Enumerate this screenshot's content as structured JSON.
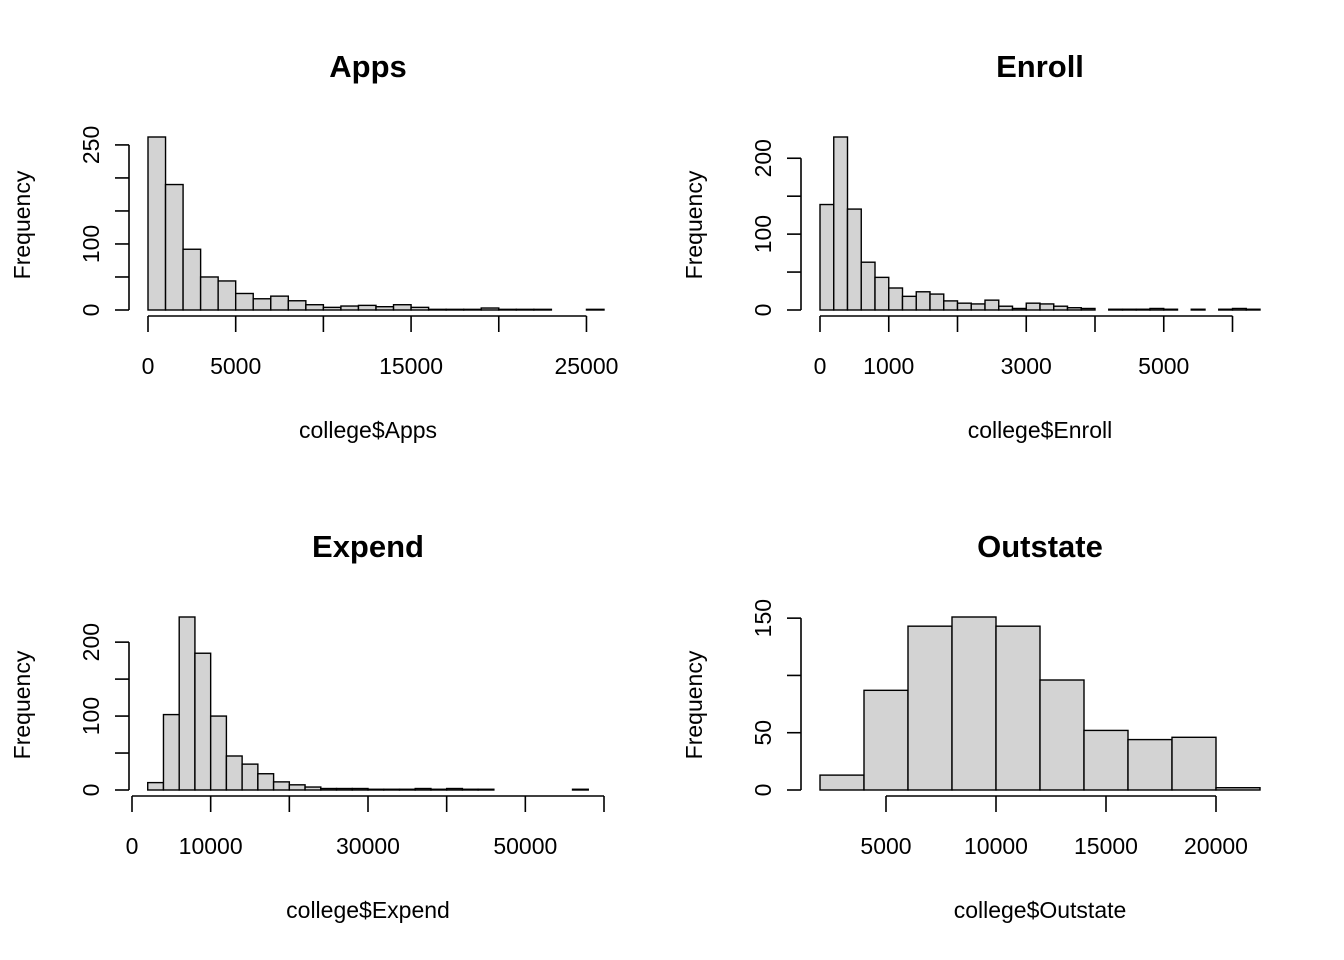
{
  "chart_data": [
    {
      "type": "bar",
      "title": "Apps",
      "xlabel": "college$Apps",
      "ylabel": "Frequency",
      "bins": [
        0,
        1000,
        2000,
        3000,
        4000,
        5000,
        6000,
        7000,
        8000,
        9000,
        10000,
        11000,
        12000,
        13000,
        14000,
        15000,
        16000,
        17000,
        18000,
        19000,
        20000,
        21000,
        22000,
        23000,
        24000,
        25000,
        26000
      ],
      "counts": [
        262,
        190,
        92,
        50,
        44,
        25,
        17,
        21,
        14,
        8,
        4,
        6,
        7,
        5,
        8,
        4,
        1,
        1,
        1,
        3,
        1,
        1,
        1,
        0,
        0,
        1
      ],
      "xticks": [
        0,
        5000,
        10000,
        15000,
        20000,
        25000
      ],
      "xticklabels": [
        "0",
        "5000",
        "",
        "15000",
        "",
        "25000"
      ],
      "yticks": [
        0,
        50,
        100,
        150,
        200,
        250
      ],
      "yticklabels": [
        "0",
        "",
        "100",
        "",
        "",
        "250"
      ],
      "xlim": [
        0,
        26000
      ],
      "ylim": [
        0,
        262
      ]
    },
    {
      "type": "bar",
      "title": "Enroll",
      "xlabel": "college$Enroll",
      "ylabel": "Frequency",
      "bins": [
        0,
        200,
        400,
        600,
        800,
        1000,
        1200,
        1400,
        1600,
        1800,
        2000,
        2200,
        2400,
        2600,
        2800,
        3000,
        3200,
        3400,
        3600,
        3800,
        4000,
        4200,
        4400,
        4600,
        4800,
        5000,
        5200,
        5400,
        5600,
        5800,
        6000,
        6200,
        6400
      ],
      "counts": [
        139,
        228,
        133,
        63,
        43,
        29,
        18,
        24,
        21,
        12,
        9,
        8,
        13,
        5,
        2,
        9,
        8,
        5,
        3,
        2,
        0,
        1,
        1,
        1,
        2,
        1,
        0,
        1,
        0,
        1,
        2,
        1
      ],
      "xticks": [
        0,
        1000,
        2000,
        3000,
        4000,
        5000,
        6000
      ],
      "xticklabels": [
        "0",
        "1000",
        "",
        "3000",
        "",
        "5000",
        ""
      ],
      "yticks": [
        0,
        50,
        100,
        150,
        200
      ],
      "yticklabels": [
        "0",
        "",
        "100",
        "",
        "200"
      ],
      "xlim": [
        0,
        6400
      ],
      "ylim": [
        0,
        228
      ]
    },
    {
      "type": "bar",
      "title": "Expend",
      "xlabel": "college$Expend",
      "ylabel": "Frequency",
      "bins": [
        0,
        2000,
        4000,
        6000,
        8000,
        10000,
        12000,
        14000,
        16000,
        18000,
        20000,
        22000,
        24000,
        26000,
        28000,
        30000,
        32000,
        34000,
        36000,
        38000,
        40000,
        42000,
        44000,
        46000,
        48000,
        50000,
        52000,
        54000,
        56000,
        58000,
        60000
      ],
      "counts": [
        0,
        10,
        102,
        234,
        185,
        100,
        46,
        35,
        22,
        11,
        7,
        4,
        2,
        2,
        2,
        1,
        1,
        1,
        2,
        1,
        2,
        1,
        1,
        0,
        0,
        0,
        0,
        0,
        1,
        0
      ],
      "xticks": [
        0,
        10000,
        20000,
        30000,
        40000,
        50000,
        60000
      ],
      "xticklabels": [
        "0",
        "10000",
        "",
        "30000",
        "",
        "50000",
        ""
      ],
      "yticks": [
        0,
        50,
        100,
        150,
        200
      ],
      "yticklabels": [
        "0",
        "",
        "100",
        "",
        "200"
      ],
      "xlim": [
        0,
        60000
      ],
      "ylim": [
        0,
        234
      ]
    },
    {
      "type": "bar",
      "title": "Outstate",
      "xlabel": "college$Outstate",
      "ylabel": "Frequency",
      "bins": [
        2000,
        4000,
        6000,
        8000,
        10000,
        12000,
        14000,
        16000,
        18000,
        20000,
        22000
      ],
      "counts": [
        13,
        87,
        143,
        151,
        143,
        96,
        52,
        44,
        46,
        2
      ],
      "xticks": [
        5000,
        10000,
        15000,
        20000
      ],
      "xticklabels": [
        "5000",
        "10000",
        "15000",
        "20000"
      ],
      "yticks": [
        0,
        50,
        100,
        150
      ],
      "yticklabels": [
        "0",
        "50",
        "",
        "150"
      ],
      "xlim": [
        2000,
        22000
      ],
      "ylim": [
        0,
        151
      ]
    }
  ]
}
